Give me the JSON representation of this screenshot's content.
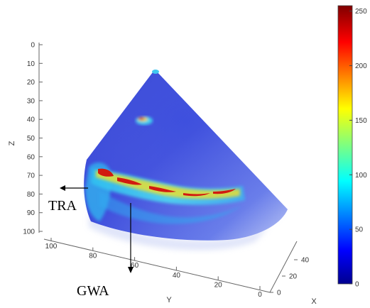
{
  "axes": {
    "z": {
      "label": "Z",
      "ticks": [
        "0",
        "10",
        "20",
        "30",
        "40",
        "50",
        "60",
        "70",
        "80",
        "90",
        "100"
      ]
    },
    "y": {
      "label": "Y",
      "ticks": [
        "100",
        "80",
        "60",
        "40",
        "20",
        "0"
      ]
    },
    "x": {
      "label": "X",
      "ticks": [
        "0",
        "20",
        "40"
      ]
    }
  },
  "colorbar": {
    "ticks": [
      "250",
      "200",
      "150",
      "100",
      "50",
      "0"
    ],
    "range": [
      0,
      255
    ],
    "colormap": "jet"
  },
  "annotations": {
    "tra": "TRA",
    "gwa": "GWA"
  },
  "colors": {
    "cone_deep": "#1c24c8",
    "cone_mid": "#3848e0",
    "cone_light": "#8aa0f0",
    "echo_hot": "#d11a10",
    "echo_warm": "#f0d020",
    "echo_cyan": "#40d8e8"
  }
}
